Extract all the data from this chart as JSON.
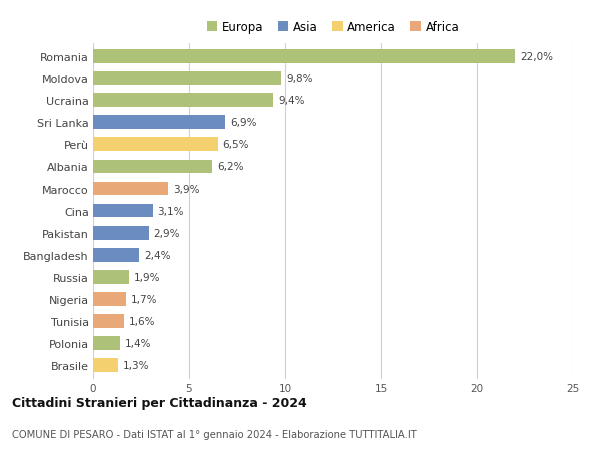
{
  "countries": [
    "Romania",
    "Moldova",
    "Ucraina",
    "Sri Lanka",
    "Perù",
    "Albania",
    "Marocco",
    "Cina",
    "Pakistan",
    "Bangladesh",
    "Russia",
    "Nigeria",
    "Tunisia",
    "Polonia",
    "Brasile"
  ],
  "values": [
    22.0,
    9.8,
    9.4,
    6.9,
    6.5,
    6.2,
    3.9,
    3.1,
    2.9,
    2.4,
    1.9,
    1.7,
    1.6,
    1.4,
    1.3
  ],
  "continents": [
    "Europa",
    "Europa",
    "Europa",
    "Asia",
    "America",
    "Europa",
    "Africa",
    "Asia",
    "Asia",
    "Asia",
    "Europa",
    "Africa",
    "Africa",
    "Europa",
    "America"
  ],
  "labels": [
    "22,0%",
    "9,8%",
    "9,4%",
    "6,9%",
    "6,5%",
    "6,2%",
    "3,9%",
    "3,1%",
    "2,9%",
    "2,4%",
    "1,9%",
    "1,7%",
    "1,6%",
    "1,4%",
    "1,3%"
  ],
  "colors": {
    "Europa": "#adc178",
    "Asia": "#6b8cbe",
    "America": "#f5d06e",
    "Africa": "#e8a878"
  },
  "legend_order": [
    "Europa",
    "Asia",
    "America",
    "Africa"
  ],
  "title": "Cittadini Stranieri per Cittadinanza - 2024",
  "subtitle": "COMUNE DI PESARO - Dati ISTAT al 1° gennaio 2024 - Elaborazione TUTTITALIA.IT",
  "xlim": [
    0,
    25
  ],
  "xticks": [
    0,
    5,
    10,
    15,
    20,
    25
  ],
  "background_color": "#ffffff",
  "grid_color": "#d0d0d0"
}
